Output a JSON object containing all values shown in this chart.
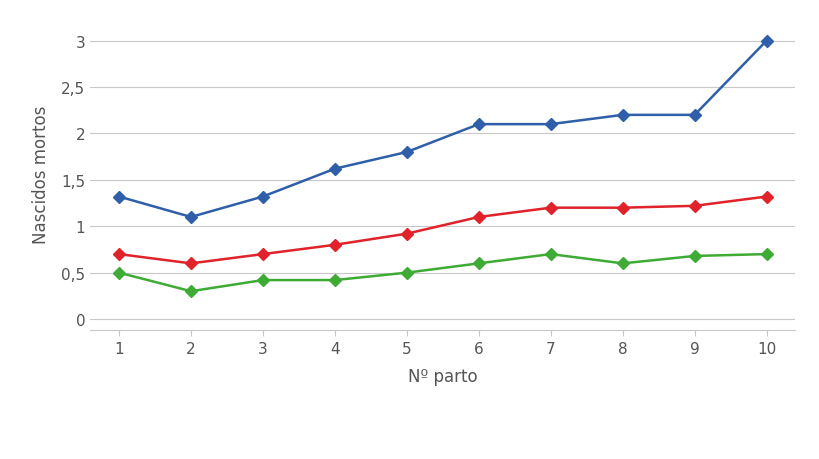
{
  "x": [
    1,
    2,
    3,
    4,
    5,
    6,
    7,
    8,
    9,
    10
  ],
  "series": {
    "<13 NT": {
      "values": [
        0.5,
        0.3,
        0.42,
        0.42,
        0.5,
        0.6,
        0.7,
        0.6,
        0.68,
        0.7
      ],
      "color": "#3dab34",
      "marker": "D"
    },
    "13-16 NT": {
      "values": [
        0.7,
        0.6,
        0.7,
        0.8,
        0.92,
        1.1,
        1.2,
        1.2,
        1.22,
        1.32
      ],
      "color": "#e0222a",
      "marker": "D"
    },
    ">16 NT": {
      "values": [
        1.32,
        1.1,
        1.32,
        1.62,
        1.8,
        2.1,
        2.1,
        2.2,
        2.2,
        3.0
      ],
      "color": "#2e5fa8",
      "marker": "D"
    }
  },
  "xlabel": "Nº parto",
  "ylabel": "Nascidos mortos",
  "yticks": [
    0,
    0.5,
    1.0,
    1.5,
    2.0,
    2.5,
    3.0
  ],
  "ytick_labels": [
    "0",
    "0,5",
    "1",
    "1,5",
    "2",
    "2,5",
    "3"
  ],
  "xlim": [
    0.6,
    10.4
  ],
  "ylim": [
    -0.12,
    3.25
  ],
  "background_color": "#ffffff",
  "grid_color": "#c8c8c8",
  "marker_size": 6,
  "line_width": 1.8,
  "tick_fontsize": 11,
  "label_fontsize": 12,
  "legend_fontsize": 11
}
